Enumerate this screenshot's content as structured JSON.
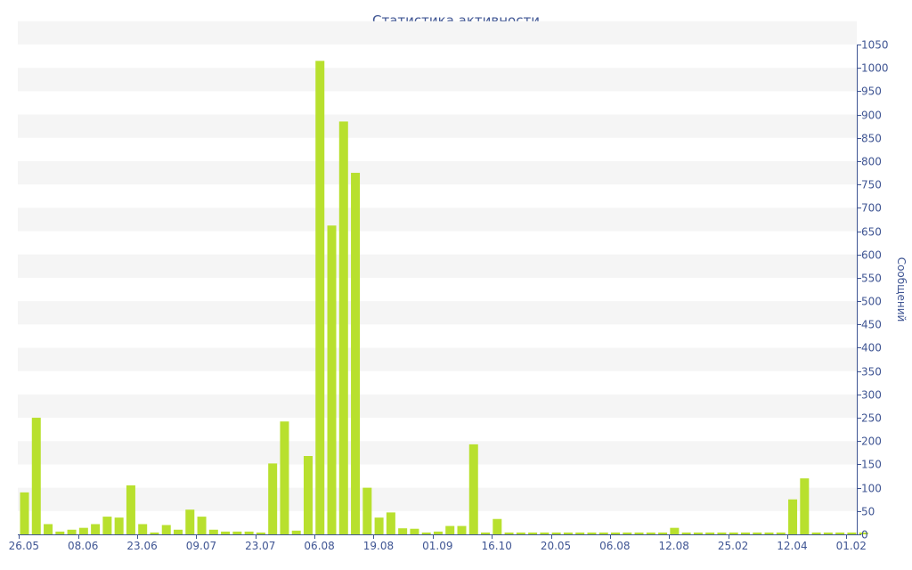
{
  "chart_data": {
    "type": "bar",
    "title": "Статистика активности",
    "xlabel": "",
    "ylabel": "Сообщений",
    "ylim": [
      0,
      1050
    ],
    "ytick_step": 50,
    "grid": "alternating horizontal bands",
    "colors": {
      "bar": "#b8e02e",
      "band": "#f5f5f5",
      "axis": "#3f5593",
      "text": "#3f5593"
    },
    "x_tick_labels": [
      {
        "index": 0,
        "label": "26.05"
      },
      {
        "index": 5,
        "label": "08.06"
      },
      {
        "index": 10,
        "label": "23.06"
      },
      {
        "index": 15,
        "label": "09.07"
      },
      {
        "index": 20,
        "label": "23.07"
      },
      {
        "index": 25,
        "label": "06.08"
      },
      {
        "index": 30,
        "label": "19.08"
      },
      {
        "index": 35,
        "label": "01.09"
      },
      {
        "index": 40,
        "label": "16.10"
      },
      {
        "index": 45,
        "label": "20.05"
      },
      {
        "index": 50,
        "label": "06.08"
      },
      {
        "index": 55,
        "label": "12.08"
      },
      {
        "index": 60,
        "label": "25.02"
      },
      {
        "index": 65,
        "label": "12.04"
      },
      {
        "index": 70,
        "label": "01.02"
      }
    ],
    "values": [
      90,
      250,
      22,
      6,
      10,
      14,
      22,
      38,
      36,
      105,
      22,
      4,
      20,
      10,
      53,
      38,
      10,
      6,
      6,
      6,
      4,
      152,
      242,
      8,
      168,
      1015,
      662,
      885,
      775,
      100,
      36,
      47,
      13,
      12,
      4,
      6,
      18,
      18,
      193,
      4,
      33,
      4,
      4,
      4,
      4,
      4,
      4,
      4,
      4,
      4,
      4,
      4,
      4,
      4,
      4,
      14,
      4,
      4,
      4,
      4,
      4,
      4,
      4,
      4,
      4,
      75,
      120,
      4,
      4,
      4,
      4,
      4
    ]
  }
}
